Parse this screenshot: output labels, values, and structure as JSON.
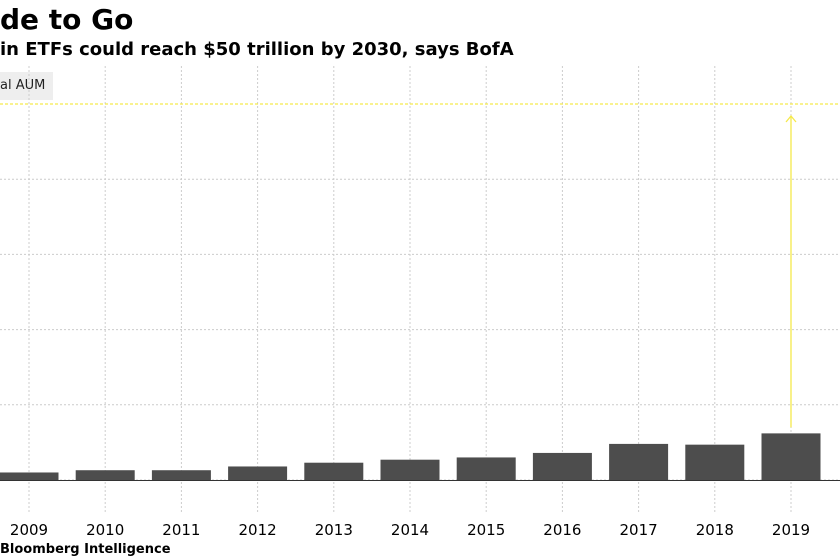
{
  "title": "de to Go",
  "subtitle": " in ETFs could reach $50 trillion by 2030, says BofA",
  "source": "Bloomberg Intelligence",
  "legend_label": "al AUM",
  "colors": {
    "bar": "#4d4d4d",
    "target": "#f5e94a",
    "grid": "#cccccc",
    "axis": "#333333"
  },
  "chart_data": {
    "type": "bar",
    "title": "de to Go",
    "subtitle": " in ETFs could reach $50 trillion by 2030, says BofA",
    "categories": [
      "2009",
      "2010",
      "2011",
      "2012",
      "2013",
      "2014",
      "2015",
      "2016",
      "2017",
      "2018",
      "2019"
    ],
    "values": [
      1.0,
      1.3,
      1.3,
      1.8,
      2.3,
      2.7,
      3.0,
      3.6,
      4.8,
      4.7,
      6.2
    ],
    "unit": "trillion USD (estimated)",
    "ylim": [
      0,
      50
    ],
    "target_value": 50,
    "gridlines": [
      0,
      10,
      20,
      30,
      40,
      50
    ],
    "grid": true,
    "legend_position": "top-left",
    "series": [
      {
        "name": "al AUM",
        "values": [
          1.0,
          1.3,
          1.3,
          1.8,
          2.3,
          2.7,
          3.0,
          3.6,
          4.8,
          4.7,
          6.2
        ]
      }
    ]
  }
}
